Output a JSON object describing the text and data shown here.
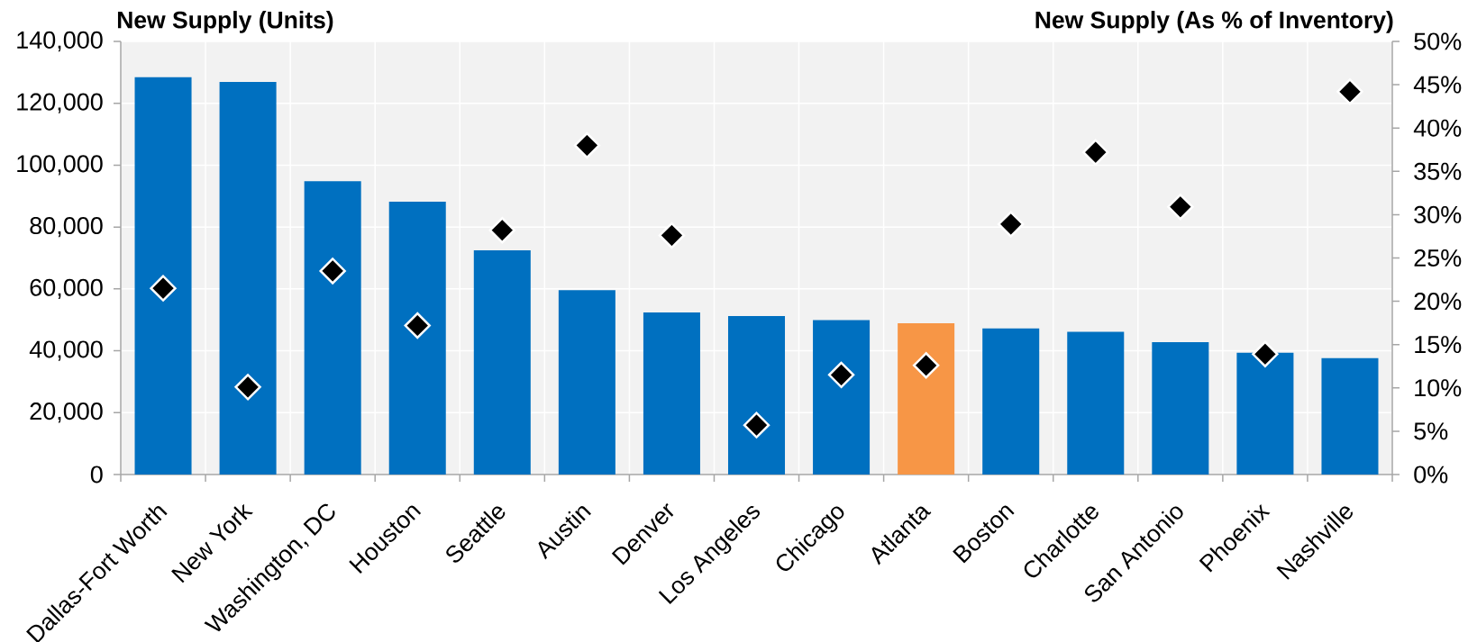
{
  "chart_data": {
    "type": "bar",
    "ylabel": "New Supply (Units)",
    "y2label": "New Supply (As % of Inventory)",
    "categories": [
      "Dallas-Fort Worth",
      "New York",
      "Washington, DC",
      "Houston",
      "Seattle",
      "Austin",
      "Denver",
      "Los Angeles",
      "Chicago",
      "Atlanta",
      "Boston",
      "Charlotte",
      "San Antonio",
      "Phoenix",
      "Nashville"
    ],
    "series": [
      {
        "type": "bar",
        "colors": [
          "#0070c0",
          "#0070c0",
          "#0070c0",
          "#0070c0",
          "#0070c0",
          "#0070c0",
          "#0070c0",
          "#0070c0",
          "#0070c0",
          "#f79646",
          "#0070c0",
          "#0070c0",
          "#0070c0",
          "#0070c0",
          "#0070c0"
        ],
        "values": [
          128400,
          126900,
          94800,
          88200,
          72500,
          59600,
          52400,
          51200,
          49900,
          48900,
          47200,
          46100,
          42800,
          39400,
          37600
        ]
      },
      {
        "type": "scatter",
        "axis": "y2",
        "color": "#000000",
        "marker": "diamond",
        "values": [
          21.5,
          10.1,
          23.5,
          17.2,
          28.2,
          38.0,
          27.6,
          5.7,
          11.5,
          12.6,
          28.9,
          37.2,
          30.9,
          13.9,
          44.2
        ]
      }
    ],
    "ylim": [
      0,
      140000
    ],
    "yticks": [
      0,
      {
        "value": 20000,
        "label": "20,000"
      },
      {
        "value": 40000,
        "label": "40,000"
      },
      {
        "value": 60000,
        "label": "60,000"
      },
      {
        "value": 80000,
        "label": "80,000"
      },
      {
        "value": 100000,
        "label": "100,000"
      },
      {
        "value": 120000,
        "label": "120,000"
      },
      {
        "value": 140000,
        "label": "140,000"
      }
    ],
    "y2lim": [
      0,
      50
    ],
    "y2ticks": [
      {
        "value": 0,
        "label": "0%"
      },
      {
        "value": 5,
        "label": "5%"
      },
      {
        "value": 10,
        "label": "10%"
      },
      {
        "value": 15,
        "label": "15%"
      },
      {
        "value": 20,
        "label": "20%"
      },
      {
        "value": 25,
        "label": "25%"
      },
      {
        "value": 30,
        "label": "30%"
      },
      {
        "value": 35,
        "label": "35%"
      },
      {
        "value": 40,
        "label": "40%"
      },
      {
        "value": 45,
        "label": "45%"
      },
      {
        "value": 50,
        "label": "50%"
      }
    ],
    "grid": true
  }
}
